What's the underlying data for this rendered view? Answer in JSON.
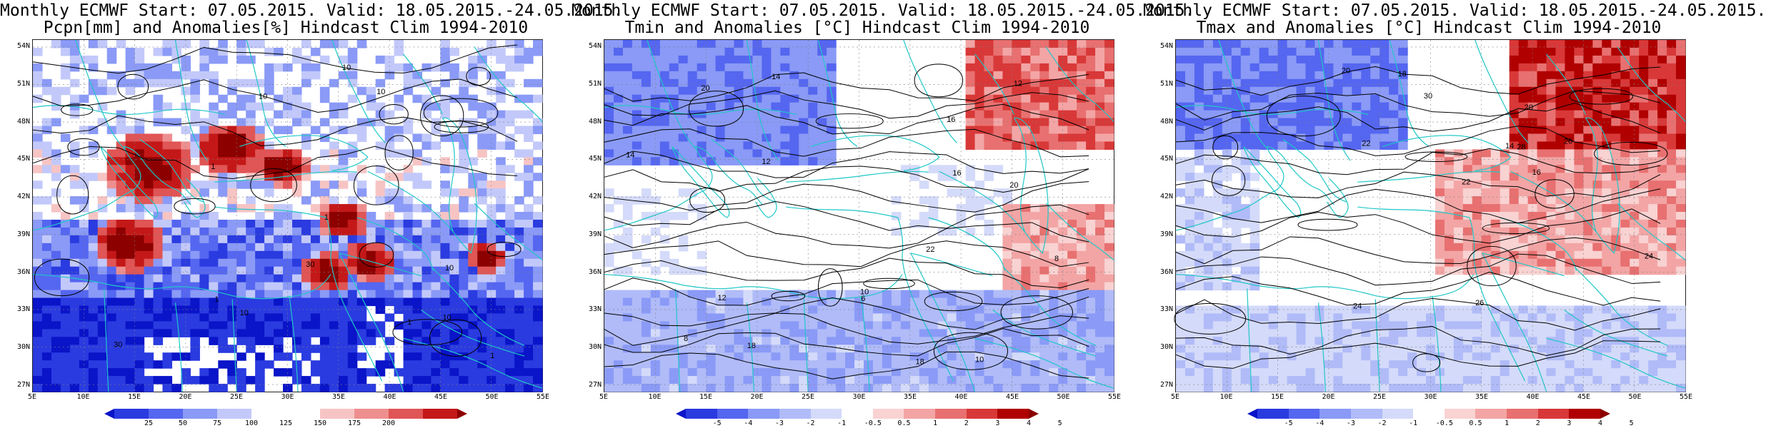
{
  "panels": [
    {
      "title_line1": "Monthly ECMWF Start: 07.05.2015. Valid: 18.05.2015.-24.05.2015.",
      "title_line2": "Pcpn[mm] and Anomalies[%] Hindcast Clim 1994-2010",
      "variable": "precipitation",
      "colorbar_ticks": [
        "25",
        "50",
        "75",
        "100",
        "125",
        "150",
        "175",
        "200"
      ],
      "colorbar_colors": [
        "#0a14c8",
        "#2a3be0",
        "#5566f0",
        "#8a9af6",
        "#c2c9fa",
        "#ffffff",
        "#ffffff",
        "#f7c4c4",
        "#ee8f8f",
        "#e05555",
        "#c41818",
        "#8c0000"
      ],
      "contour_labels": [
        "30",
        "10",
        "1",
        "30",
        "10",
        "10",
        "10",
        "10",
        "1",
        "1",
        "1",
        "1",
        "10"
      ]
    },
    {
      "title_line1": "Monthly ECMWF Start: 07.05.2015. Valid: 18.05.2015.-24.05.2015.",
      "title_line2": "Tmin and Anomalies [°C] Hindcast Clim 1994-2010",
      "variable": "tmin",
      "colorbar_ticks": [
        "-5",
        "-4",
        "-3",
        "-2",
        "-1",
        "-0.5",
        "0.5",
        "1",
        "2",
        "3",
        "4",
        "5"
      ],
      "colorbar_colors": [
        "#0a14c8",
        "#2a3be0",
        "#5566f0",
        "#8a9af6",
        "#b0bbf8",
        "#d4daf9",
        "#ffffff",
        "#f9d2d2",
        "#f3a5a5",
        "#e87070",
        "#d83838",
        "#b00000",
        "#8c0000"
      ],
      "contour_labels": [
        "8",
        "10",
        "6",
        "8",
        "10",
        "12",
        "14",
        "16",
        "18",
        "20",
        "22",
        "12",
        "14",
        "16",
        "18",
        "20",
        "12"
      ]
    },
    {
      "title_line1": "Monthly ECMWF Start: 07.05.2015. Valid: 18.05.2015.-24.05.2015.",
      "title_line2": "Tmax and Anomalies [°C] Hindcast Clim 1994-2010",
      "variable": "tmax",
      "colorbar_ticks": [
        "-5",
        "-4",
        "-3",
        "-2",
        "-1",
        "-0.5",
        "0.5",
        "1",
        "2",
        "3",
        "4",
        "5"
      ],
      "colorbar_colors": [
        "#0a14c8",
        "#2a3be0",
        "#5566f0",
        "#8a9af6",
        "#b0bbf8",
        "#d4daf9",
        "#ffffff",
        "#f9d2d2",
        "#f3a5a5",
        "#e87070",
        "#d83838",
        "#b00000",
        "#8c0000"
      ],
      "contour_labels": [
        "16",
        "14",
        "18",
        "20",
        "22",
        "24",
        "26",
        "28",
        "30",
        "20",
        "22",
        "24",
        "26"
      ]
    }
  ],
  "axes": {
    "lat_labels": [
      "54N",
      "51N",
      "48N",
      "45N",
      "42N",
      "39N",
      "36N",
      "33N",
      "30N",
      "27N"
    ],
    "lon_labels": [
      "5E",
      "10E",
      "15E",
      "20E",
      "25E",
      "30E",
      "35E",
      "40E",
      "45E",
      "50E",
      "55E"
    ]
  },
  "colors": {
    "coastline": "#1fc7c7",
    "contour": "#000000",
    "grid": "#7f7f7f"
  }
}
